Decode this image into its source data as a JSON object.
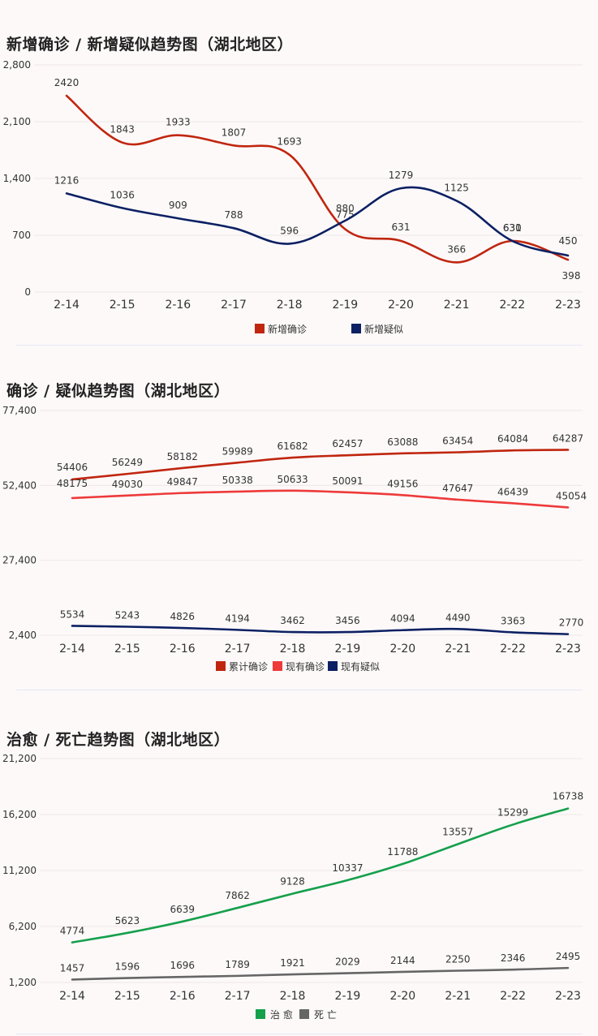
{
  "chart_data": [
    {
      "type": "line",
      "title": "新增确诊 / 新增疑似趋势图（湖北地区）",
      "categories": [
        "2-14",
        "2-15",
        "2-16",
        "2-17",
        "2-18",
        "2-19",
        "2-20",
        "2-21",
        "2-22",
        "2-23"
      ],
      "yticks": [
        "0",
        "700",
        "1,400",
        "2,100",
        "2,800"
      ],
      "ylim": [
        0,
        2800
      ],
      "grid": true,
      "legend": "bottom",
      "series": [
        {
          "name": "新增确诊",
          "color": "#c0260f",
          "values": [
            2420,
            1843,
            1933,
            1807,
            1693,
            775,
            631,
            366,
            630,
            398
          ]
        },
        {
          "name": "新增疑似",
          "color": "#0c2063",
          "values": [
            1216,
            1036,
            909,
            788,
            596,
            880,
            1279,
            1125,
            631,
            450
          ]
        }
      ]
    },
    {
      "type": "line",
      "title": "确诊 / 疑似趋势图（湖北地区）",
      "categories": [
        "2-14",
        "2-15",
        "2-16",
        "2-17",
        "2-18",
        "2-19",
        "2-20",
        "2-21",
        "2-22",
        "2-23"
      ],
      "yticks": [
        "2,400",
        "27,400",
        "52,400",
        "77,400"
      ],
      "ylim": [
        2400,
        77400
      ],
      "grid": true,
      "legend": "bottom",
      "series": [
        {
          "name": "累计确诊",
          "color": "#c0260f",
          "values": [
            54406,
            56249,
            58182,
            59989,
            61682,
            62457,
            63088,
            63454,
            64084,
            64287
          ]
        },
        {
          "name": "现有确诊",
          "color": "#ee3a3a",
          "values": [
            48175,
            49030,
            49847,
            50338,
            50633,
            50091,
            49156,
            47647,
            46439,
            45054
          ]
        },
        {
          "name": "现有疑似",
          "color": "#0c2063",
          "values": [
            5534,
            5243,
            4826,
            4194,
            3462,
            3456,
            4094,
            4490,
            3363,
            2770
          ]
        }
      ]
    },
    {
      "type": "line",
      "title": "治愈 / 死亡趋势图（湖北地区）",
      "categories": [
        "2-14",
        "2-15",
        "2-16",
        "2-17",
        "2-18",
        "2-19",
        "2-20",
        "2-21",
        "2-22",
        "2-23"
      ],
      "yticks": [
        "1,200",
        "6,200",
        "11,200",
        "16,200",
        "21,200"
      ],
      "ylim": [
        1200,
        21200
      ],
      "grid": true,
      "legend": "bottom",
      "series": [
        {
          "name": "治 愈",
          "color": "#15a04c",
          "values": [
            4774,
            5623,
            6639,
            7862,
            9128,
            10337,
            11788,
            13557,
            15299,
            16738
          ]
        },
        {
          "name": "死 亡",
          "color": "#666666",
          "values": [
            1457,
            1596,
            1696,
            1789,
            1921,
            2029,
            2144,
            2250,
            2346,
            2495
          ]
        }
      ]
    }
  ]
}
